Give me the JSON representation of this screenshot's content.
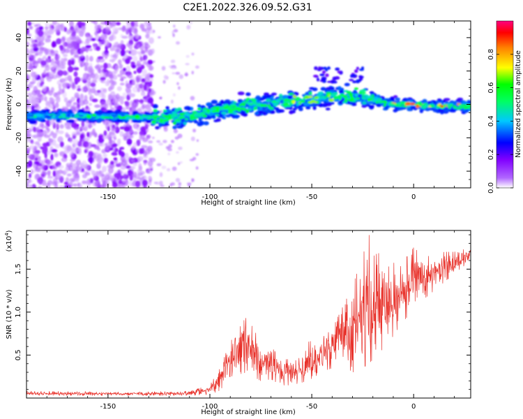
{
  "title": "C2E1.2022.326.09.52.G31",
  "chart_data": [
    {
      "type": "heatmap",
      "xlabel": "Height of straight line (km)",
      "ylabel": "Frequency (Hz)",
      "xlim": [
        -190,
        28
      ],
      "ylim": [
        -50,
        50
      ],
      "xticks": [
        "-150",
        "-100",
        "-50",
        "0"
      ],
      "yticks": [
        "-40",
        "-20",
        "0",
        "20",
        "40"
      ],
      "grid": false,
      "colorbar": {
        "label": "Normalized spectral amplitude",
        "range": [
          0.0,
          1.0
        ],
        "ticks": [
          "0.0",
          "0.2",
          "0.4",
          "0.6",
          "0.8"
        ],
        "colors": [
          "#ffffff",
          "#a000ff",
          "#0000ff",
          "#00ffff",
          "#00ff00",
          "#ffff00",
          "#ff0000",
          "#ff0088"
        ]
      },
      "ridge": {
        "description_free": true,
        "x": [
          -190,
          -160,
          -130,
          -110,
          -100,
          -80,
          -60,
          -50,
          -40,
          -30,
          -20,
          -15,
          -10,
          0,
          10,
          20,
          28
        ],
        "y": [
          -7,
          -7,
          -8,
          -7,
          -4,
          -1,
          2,
          3,
          5,
          5,
          4,
          1,
          0,
          0,
          -1,
          -1,
          -1
        ]
      }
    },
    {
      "type": "line",
      "xlabel": "Height of straight line (km)",
      "ylabel": "SNR (10 * v/v)",
      "y_multiplier": "(x10",
      "y_multiplier_exp": "4",
      "xlim": [
        -190,
        28
      ],
      "ylim": [
        0,
        19500
      ],
      "xticks": [
        "-150",
        "-100",
        "-50",
        "0"
      ],
      "yticks": [
        "0.5",
        "1.0",
        "1.5"
      ],
      "grid": false,
      "series_color": "#e8312a",
      "envelope": {
        "x": [
          -190,
          -140,
          -110,
          -100,
          -95,
          -90,
          -82,
          -75,
          -70,
          -65,
          -60,
          -52,
          -45,
          -40,
          -35,
          -30,
          -25,
          -22,
          -18,
          -12,
          -8,
          -3,
          0,
          5,
          10,
          15,
          20,
          28
        ],
        "lo": [
          300,
          300,
          300,
          400,
          900,
          2500,
          3000,
          2000,
          2200,
          1500,
          1500,
          2000,
          3000,
          3500,
          4000,
          3000,
          3500,
          4000,
          5000,
          6500,
          8000,
          9500,
          10500,
          11500,
          12500,
          13500,
          14500,
          16000
        ],
        "hi": [
          800,
          700,
          800,
          1500,
          3500,
          6500,
          9500,
          6500,
          6000,
          4500,
          4500,
          6500,
          7000,
          8000,
          10500,
          13000,
          16500,
          19000,
          17500,
          16000,
          15500,
          16500,
          17500,
          16500,
          16500,
          17000,
          17000,
          17500
        ]
      }
    }
  ]
}
